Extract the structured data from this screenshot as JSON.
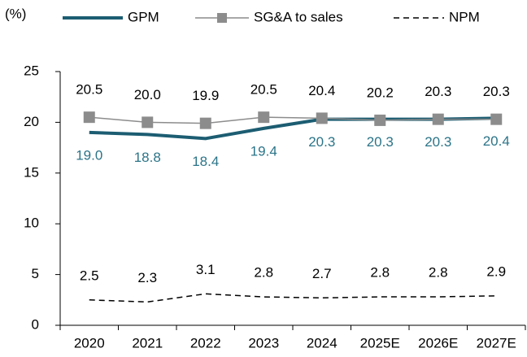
{
  "chart_data": {
    "type": "line",
    "y_label": "(%)",
    "categories": [
      "2020",
      "2021",
      "2022",
      "2023",
      "2024",
      "2025E",
      "2026E",
      "2027E"
    ],
    "series": [
      {
        "name": "GPM",
        "color": "#1c5d72",
        "style": "solid",
        "values": [
          19.0,
          18.8,
          18.4,
          19.4,
          20.3,
          20.3,
          20.3,
          20.4
        ],
        "value_labels": [
          "19.0",
          "18.8",
          "18.4",
          "19.4",
          "20.3",
          "20.3",
          "20.3",
          "20.4"
        ],
        "label_color": "#2b7488",
        "label_position": "below"
      },
      {
        "name": "SG&A to sales",
        "color": "#8c8c8c",
        "style": "solid",
        "marker": "square",
        "values": [
          20.5,
          20.0,
          19.9,
          20.5,
          20.4,
          20.2,
          20.3,
          20.3
        ],
        "value_labels": [
          "20.5",
          "20.0",
          "19.9",
          "20.5",
          "20.4",
          "20.2",
          "20.3",
          "20.3"
        ],
        "label_color": "#000000",
        "label_position": "above"
      },
      {
        "name": "NPM",
        "color": "#000000",
        "style": "dashed",
        "values": [
          2.5,
          2.3,
          3.1,
          2.8,
          2.7,
          2.8,
          2.8,
          2.9
        ],
        "value_labels": [
          "2.5",
          "2.3",
          "3.1",
          "2.8",
          "2.7",
          "2.8",
          "2.8",
          "2.9"
        ],
        "label_color": "#000000",
        "label_position": "above"
      }
    ],
    "ylim": [
      0,
      25
    ],
    "yticks": [
      0,
      5,
      10,
      15,
      20,
      25
    ],
    "grid": false,
    "legend": "top"
  }
}
